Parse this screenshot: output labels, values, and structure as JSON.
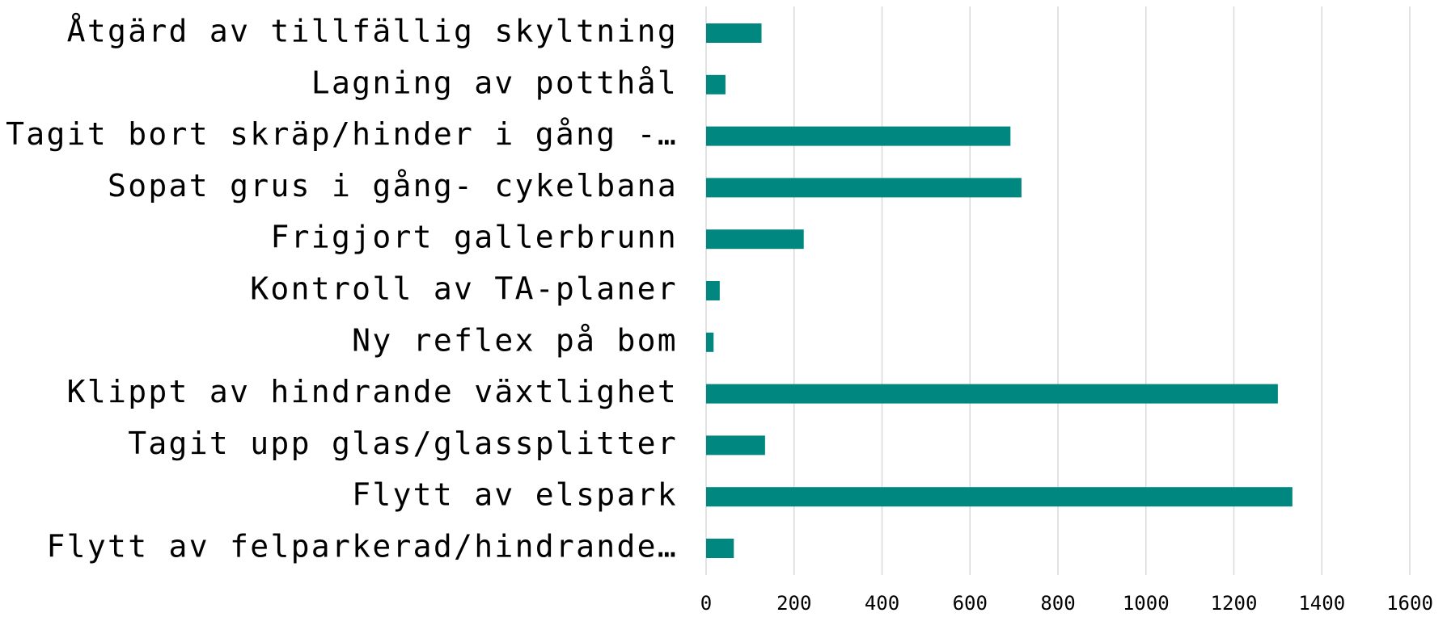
{
  "chart_data": {
    "type": "bar",
    "orientation": "horizontal",
    "categories": [
      "Åtgärd av tillfällig skyltning",
      "Lagning av potthål",
      "Tagit bort skräp/hinder i gång -…",
      "Sopat grus i gång- cykelbana",
      "Frigjort gallerbrunn",
      "Kontroll av TA-planer",
      "Ny reflex på bom",
      "Klippt av hindrande växtlighet",
      "Tagit upp glas/glassplitter",
      "Flytt av elspark",
      "Flytt av  felparkerad/hindrande…"
    ],
    "values": [
      126,
      44,
      692,
      717,
      222,
      31,
      17,
      1300,
      134,
      1333,
      63
    ],
    "color": "#00877f",
    "xlim": [
      0,
      1600
    ],
    "xticks": [
      0,
      200,
      400,
      600,
      800,
      1000,
      1200,
      1400,
      1600
    ],
    "grid": true
  }
}
